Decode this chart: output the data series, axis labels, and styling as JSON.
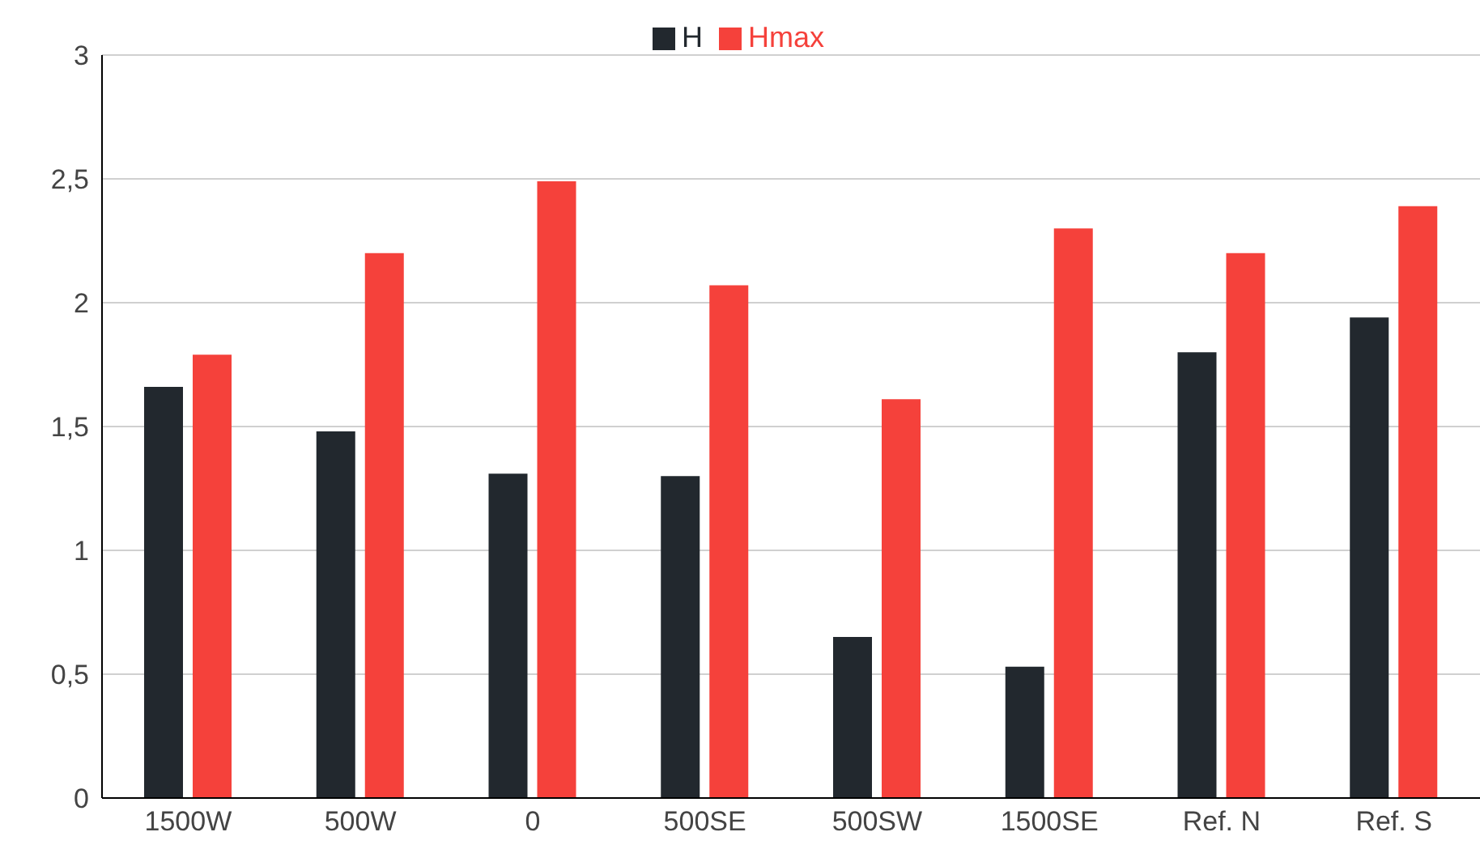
{
  "chart_data": {
    "type": "bar",
    "categories": [
      "1500W",
      "500W",
      "0",
      "500SE",
      "500SW",
      "1500SE",
      "Ref. N",
      "Ref. S"
    ],
    "series": [
      {
        "name": "H",
        "color": "#22282e",
        "values": [
          1.66,
          1.48,
          1.31,
          1.3,
          0.65,
          0.53,
          1.8,
          1.94
        ]
      },
      {
        "name": "Hmax",
        "color": "#f5413b",
        "values": [
          1.79,
          2.2,
          2.49,
          2.07,
          1.61,
          2.3,
          2.2,
          2.39
        ]
      }
    ],
    "ylim": [
      0,
      3
    ],
    "yticks": [
      0,
      {
        "value": 0.5,
        "label": "0,5"
      },
      1,
      {
        "value": 1.5,
        "label": "1,5"
      },
      2,
      {
        "value": 2.5,
        "label": "2,5"
      },
      3
    ],
    "grid": "y",
    "legend": "top"
  }
}
